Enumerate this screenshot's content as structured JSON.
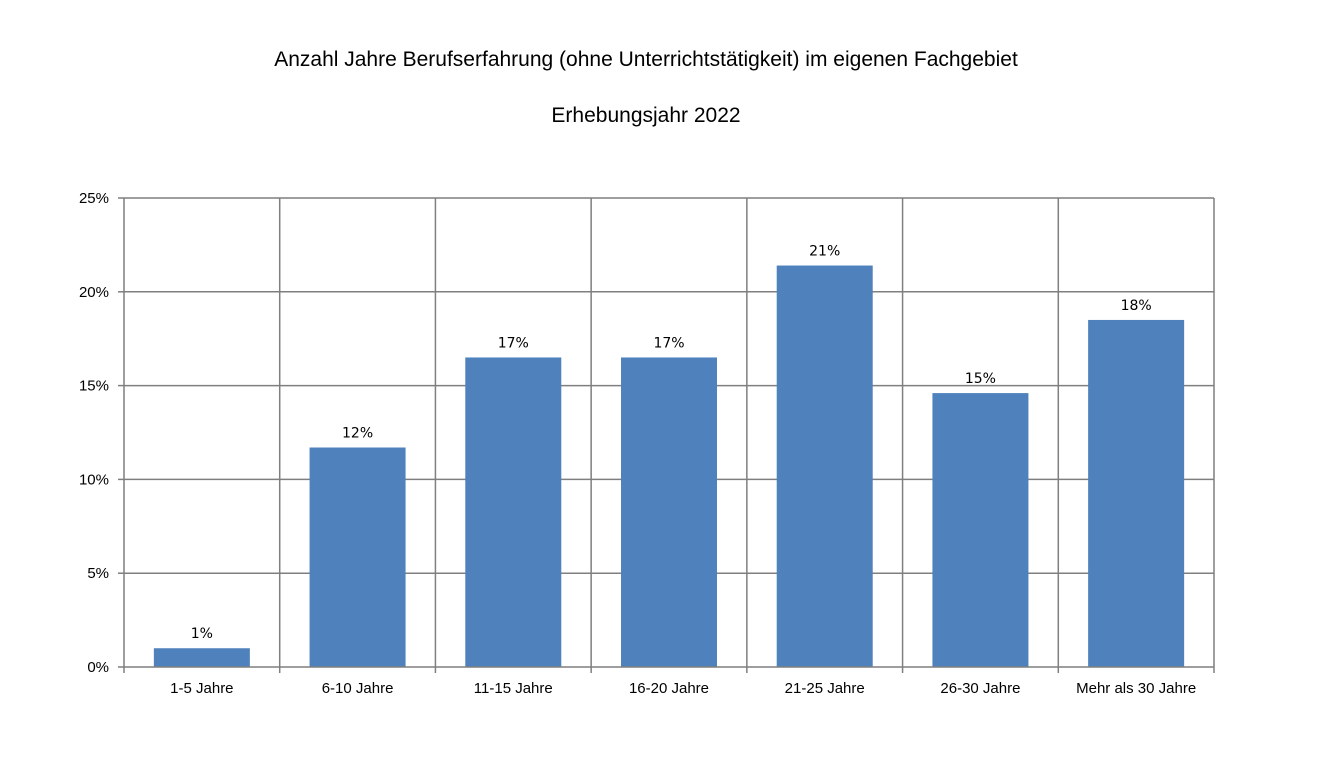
{
  "chart_data": {
    "type": "bar",
    "title": "Anzahl Jahre Berufserfahrung (ohne Unterrichtstätigkeit) im eigenen Fachgebiet",
    "subtitle": "Erhebungsjahr 2022",
    "categories": [
      "1-5 Jahre",
      "6-10 Jahre",
      "11-15 Jahre",
      "16-20 Jahre",
      "21-25 Jahre",
      "26-30 Jahre",
      "Mehr als 30 Jahre"
    ],
    "values": [
      1.0,
      11.7,
      16.5,
      16.5,
      21.4,
      14.6,
      18.5
    ],
    "data_labels": [
      "1%",
      "12%",
      "17%",
      "17%",
      "21%",
      "15%",
      "18%"
    ],
    "y_ticks": [
      "0%",
      "5%",
      "10%",
      "15%",
      "20%",
      "25%"
    ],
    "ylim": [
      0,
      25
    ],
    "y_unit": "%",
    "grid": true,
    "legend": "none",
    "bar_color": "#4F81BD",
    "grid_color": "#7F7F7F"
  }
}
